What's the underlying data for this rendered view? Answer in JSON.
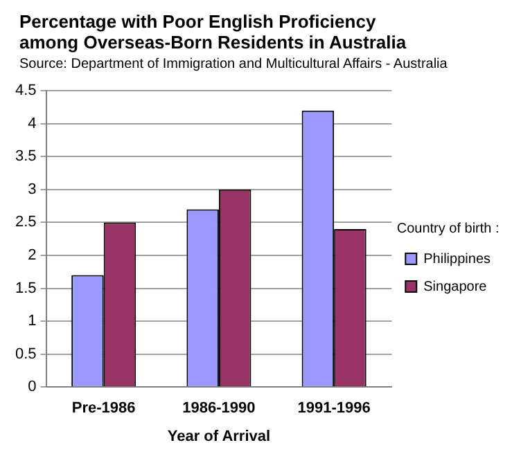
{
  "chart_data": {
    "type": "bar",
    "title": "Percentage with Poor English Proficiency among Overseas-Born Residents in Australia",
    "subtitle": "Source: Department of Immigration and Multicultural Affairs - Australia",
    "xlabel": "Year of Arrival",
    "legend_title": "Country of birth :",
    "categories": [
      "Pre-1986",
      "1986-1990",
      "1991-1996"
    ],
    "series": [
      {
        "name": "Philippines",
        "color": "#9999ff",
        "values": [
          1.7,
          2.7,
          4.2
        ]
      },
      {
        "name": "Singapore",
        "color": "#993366",
        "values": [
          2.5,
          3.0,
          2.4
        ]
      }
    ],
    "ylim": [
      0,
      4.5
    ],
    "yticks": [
      0,
      0.5,
      1,
      1.5,
      2,
      2.5,
      3,
      3.5,
      4,
      4.5
    ],
    "grid": "y",
    "legend": "right"
  }
}
